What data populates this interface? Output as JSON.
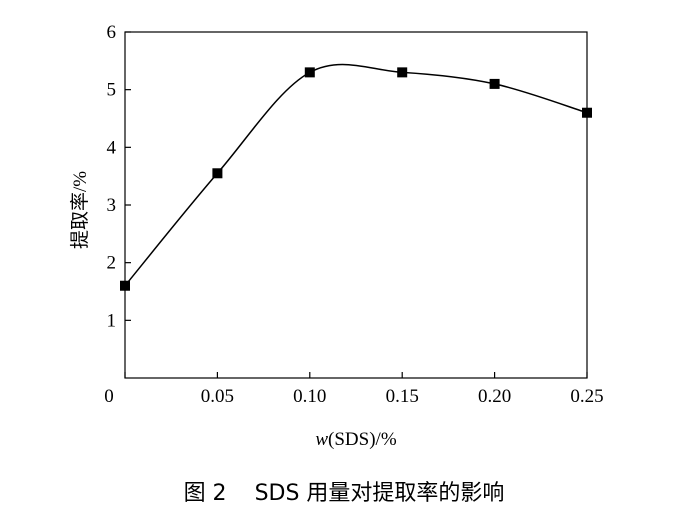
{
  "chart_data": {
    "type": "line",
    "title": "",
    "caption_prefix": "图 2",
    "caption_text": "SDS 用量对提取率的影响",
    "xlabel_italic": "w",
    "xlabel_rest": "(SDS)/%",
    "ylabel": "提取率/%",
    "xlim": [
      0,
      0.25
    ],
    "ylim": [
      0,
      6
    ],
    "x_ticks": [
      "0",
      "0.05",
      "0.10",
      "0.15",
      "0.20",
      "0.25"
    ],
    "x_tick_values": [
      0,
      0.05,
      0.1,
      0.15,
      0.2,
      0.25
    ],
    "y_ticks": [
      "1",
      "2",
      "3",
      "4",
      "5",
      "6"
    ],
    "y_tick_values": [
      1,
      2,
      3,
      4,
      5,
      6
    ],
    "series": [
      {
        "x": [
          0,
          0.05,
          0.1,
          0.15,
          0.2,
          0.25
        ],
        "y": [
          1.6,
          3.55,
          5.3,
          5.3,
          5.1,
          4.6
        ]
      }
    ],
    "grid": false,
    "marker": "square",
    "colors": {
      "line": "#000000",
      "marker": "#000000",
      "axis": "#000000"
    }
  }
}
